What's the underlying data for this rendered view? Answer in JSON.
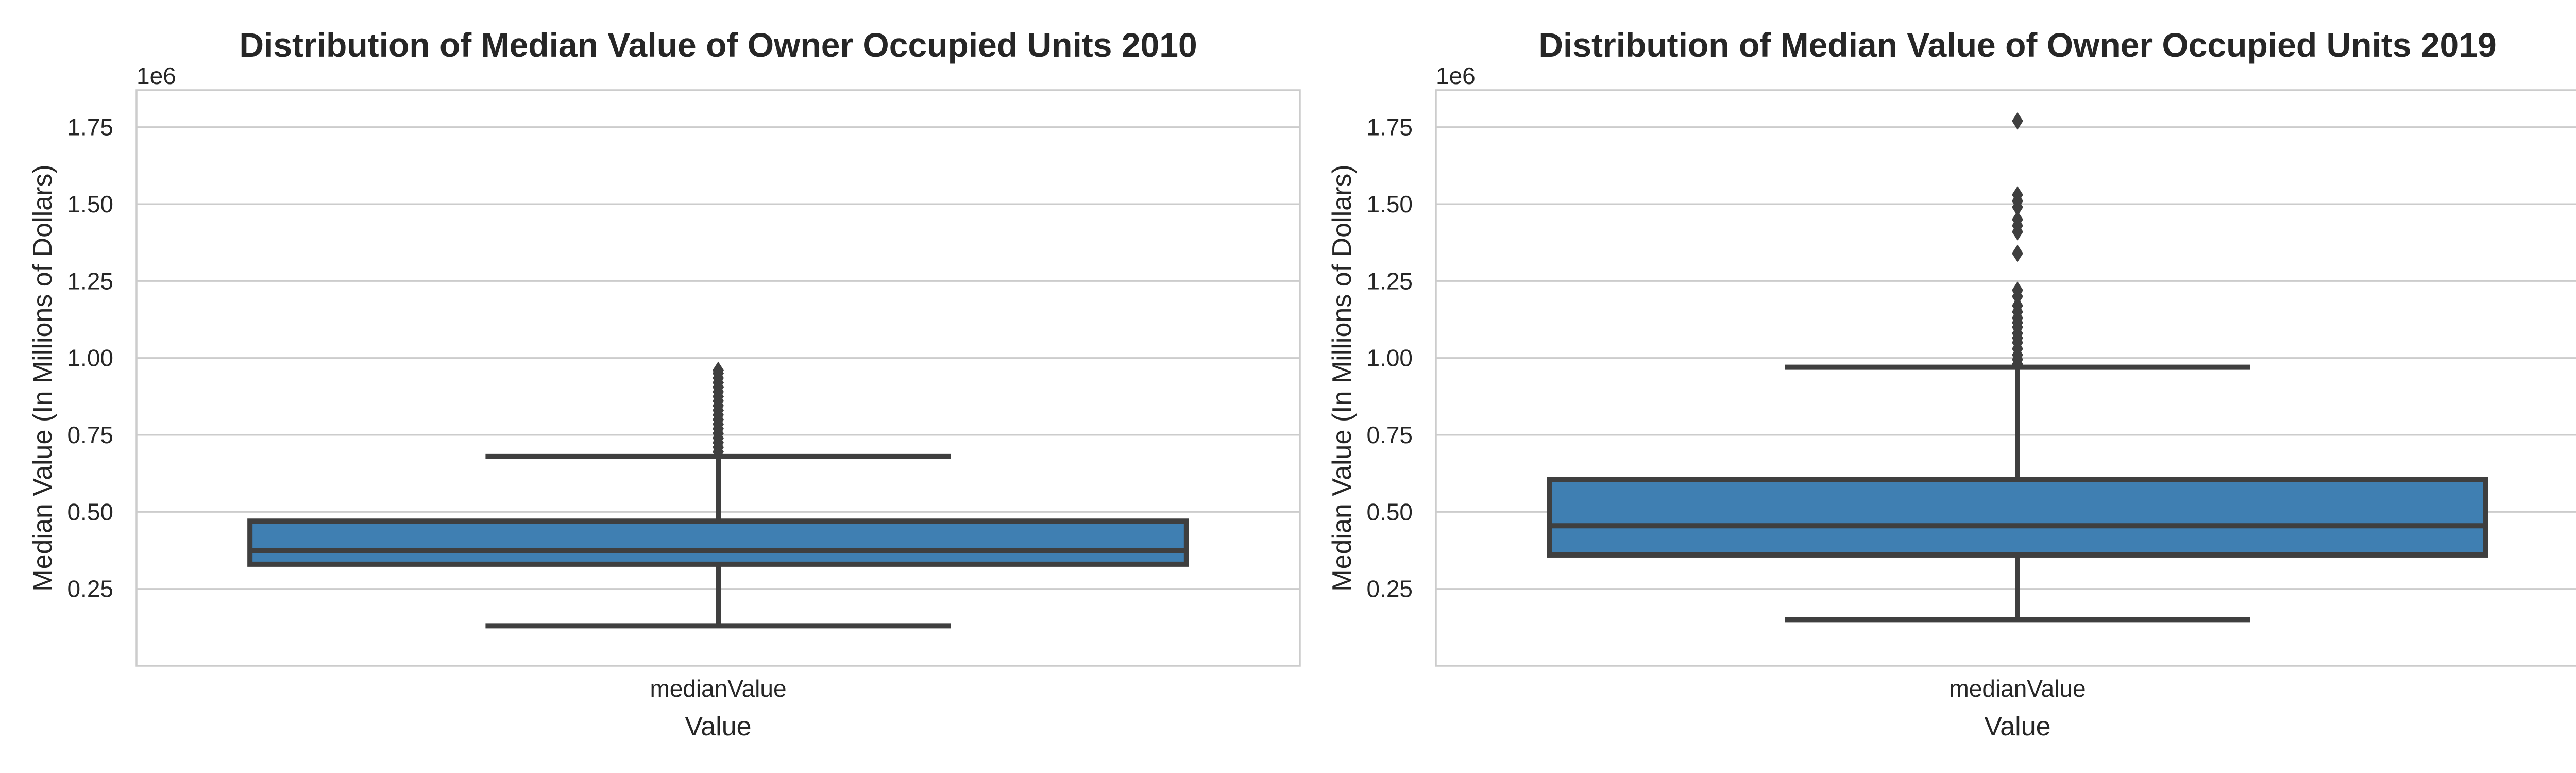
{
  "chart_data": [
    {
      "type": "box",
      "title": "Distribution of Median Value of Owner Occupied Units 2010",
      "xlabel": "Value",
      "ylabel": "Median Value (In Millions of Dollars)",
      "offset_label": "1e6",
      "categories": [
        "medianValue"
      ],
      "ylim": [
        0,
        1.87
      ],
      "yticks": [
        0.25,
        0.5,
        0.75,
        1.0,
        1.25,
        1.5,
        1.75
      ],
      "ytick_labels": [
        "0.25",
        "0.50",
        "0.75",
        "1.00",
        "1.25",
        "1.50",
        "1.75"
      ],
      "grid": true,
      "box": {
        "whisker_low": 0.13,
        "q1": 0.33,
        "median": 0.375,
        "q3": 0.47,
        "whisker_high": 0.68,
        "outliers": [
          0.695,
          0.71,
          0.725,
          0.74,
          0.755,
          0.77,
          0.785,
          0.8,
          0.815,
          0.83,
          0.845,
          0.86,
          0.875,
          0.89,
          0.905,
          0.92,
          0.935,
          0.95,
          0.96
        ]
      },
      "color": "#3f7fb2"
    },
    {
      "type": "box",
      "title": "Distribution of Median Value of Owner Occupied Units 2019",
      "xlabel": "Value",
      "ylabel": "Median Value (In Millions of Dollars)",
      "offset_label": "1e6",
      "categories": [
        "medianValue"
      ],
      "ylim": [
        0,
        1.87
      ],
      "yticks": [
        0.25,
        0.5,
        0.75,
        1.0,
        1.25,
        1.5,
        1.75
      ],
      "ytick_labels": [
        "0.25",
        "0.50",
        "0.75",
        "1.00",
        "1.25",
        "1.50",
        "1.75"
      ],
      "grid": true,
      "box": {
        "whisker_low": 0.15,
        "q1": 0.36,
        "median": 0.455,
        "q3": 0.605,
        "whisker_high": 0.97,
        "outliers": [
          0.98,
          0.995,
          1.01,
          1.03,
          1.05,
          1.065,
          1.08,
          1.1,
          1.115,
          1.13,
          1.15,
          1.17,
          1.2,
          1.22,
          1.34,
          1.41,
          1.43,
          1.45,
          1.49,
          1.51,
          1.53,
          1.77
        ]
      },
      "color": "#3f7fb2"
    }
  ]
}
